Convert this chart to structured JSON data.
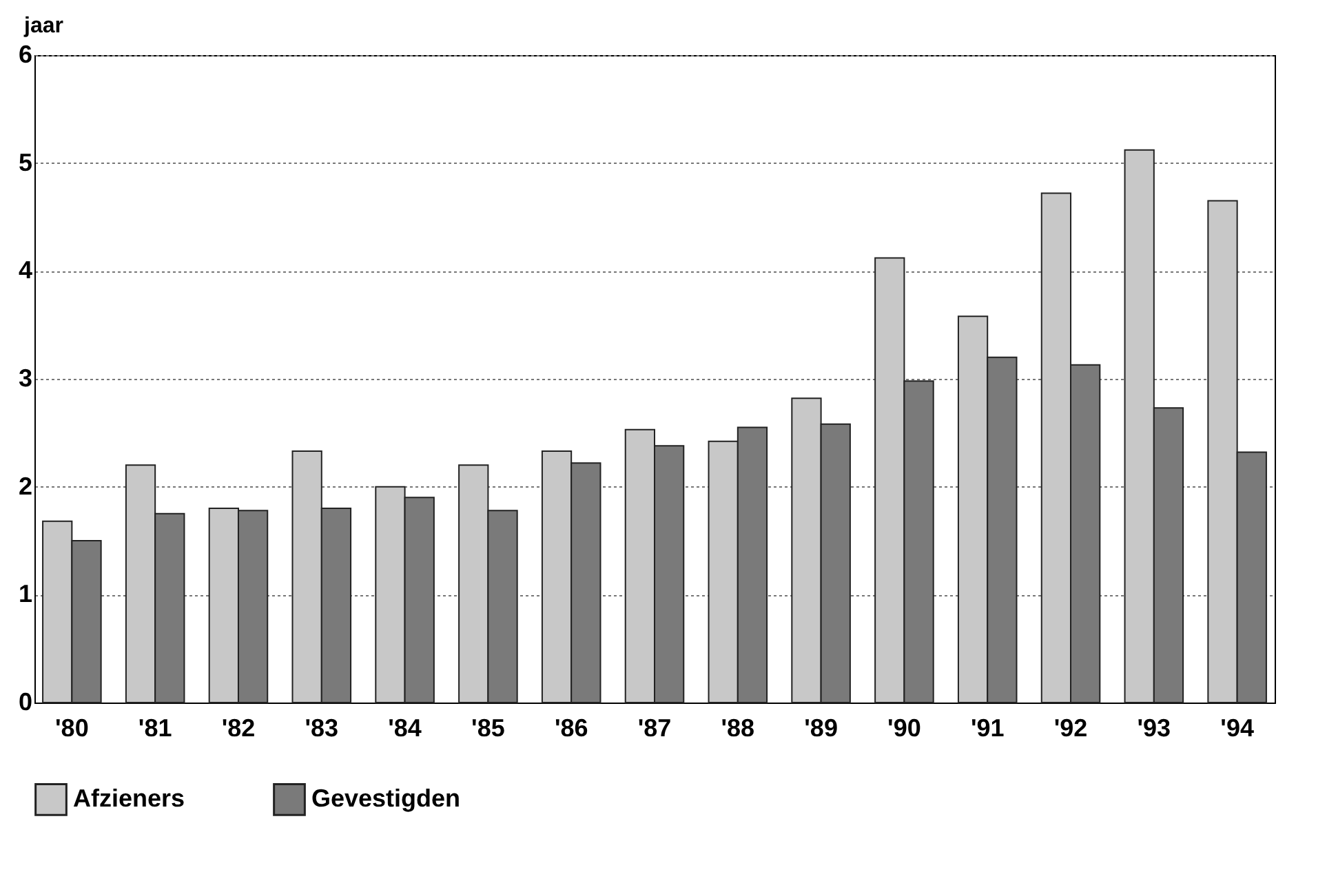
{
  "chart_data": {
    "type": "bar",
    "ylabel": "jaar",
    "categories": [
      "'80",
      "'81",
      "'82",
      "'83",
      "'84",
      "'85",
      "'86",
      "'87",
      "'88",
      "'89",
      "'90",
      "'91",
      "'92",
      "'93",
      "'94"
    ],
    "series": [
      {
        "name": "Afzieners",
        "color": "#c8c8c8",
        "values": [
          1.68,
          2.2,
          1.8,
          2.33,
          2.0,
          2.2,
          2.33,
          2.53,
          2.42,
          2.82,
          4.12,
          3.58,
          4.72,
          5.12,
          4.65
        ]
      },
      {
        "name": "Gevestigden",
        "color": "#7a7a7a",
        "values": [
          1.5,
          1.75,
          1.78,
          1.8,
          1.9,
          1.78,
          2.22,
          2.38,
          2.55,
          2.58,
          2.98,
          3.2,
          3.13,
          2.73,
          2.32
        ]
      }
    ],
    "ylim": [
      0,
      6
    ],
    "yticks": [
      0,
      1,
      2,
      3,
      4,
      5,
      6
    ],
    "grid": "y",
    "legend": "bottom"
  }
}
